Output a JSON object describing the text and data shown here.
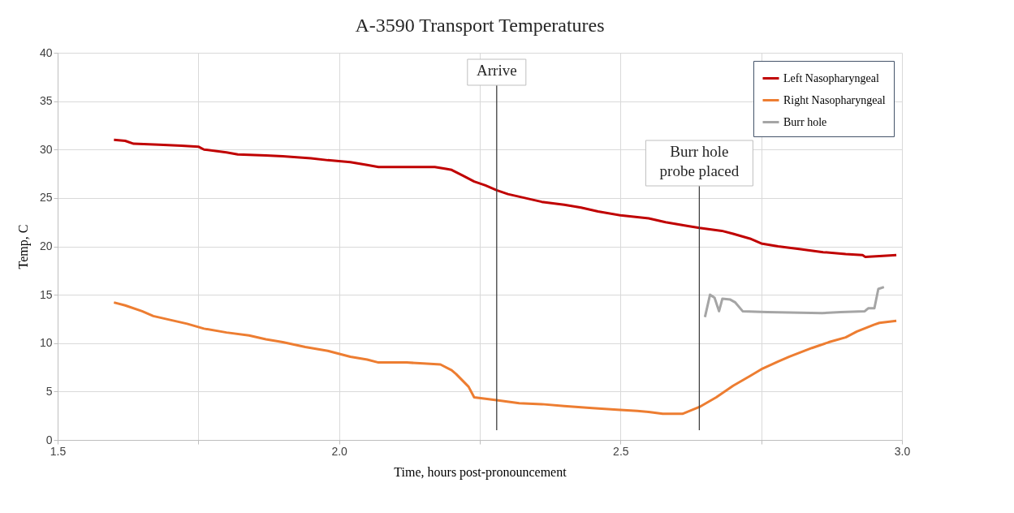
{
  "chart_data": {
    "type": "line",
    "title": "A-3590 Transport Temperatures",
    "xlabel": "Time, hours post-pronouncement",
    "ylabel": "Temp, C",
    "xlim": [
      1.5,
      3.0
    ],
    "xticks": [
      1.5,
      {
        "value": 1.75,
        "label": null
      },
      {
        "value": 2,
        "label": "2.0"
      },
      {
        "value": 2.25,
        "label": null
      },
      2.5,
      {
        "value": 2.75,
        "label": null
      },
      {
        "value": 3,
        "label": "3.0"
      }
    ],
    "ylim": [
      0,
      40
    ],
    "yticks": [
      0,
      5,
      10,
      15,
      20,
      25,
      30,
      35,
      40
    ],
    "grid": true,
    "legend": "top right",
    "line_style": "solid",
    "series": [
      {
        "name": "Left Nasopharyngeal",
        "color": "#c00000",
        "x": [
          1.6,
          1.62,
          1.635,
          1.68,
          1.72,
          1.75,
          1.76,
          1.8,
          1.82,
          1.87,
          1.9,
          1.95,
          1.98,
          2.02,
          2.05,
          2.07,
          2.12,
          2.17,
          2.19,
          2.2,
          2.22,
          2.24,
          2.26,
          2.28,
          2.3,
          2.33,
          2.36,
          2.4,
          2.43,
          2.46,
          2.5,
          2.55,
          2.58,
          2.62,
          2.64,
          2.68,
          2.7,
          2.73,
          2.75,
          2.78,
          2.82,
          2.86,
          2.9,
          2.93,
          2.935,
          2.96,
          2.99
        ],
        "values": [
          31.0,
          30.9,
          30.6,
          30.5,
          30.4,
          30.3,
          30.0,
          29.7,
          29.5,
          29.4,
          29.3,
          29.1,
          28.9,
          28.7,
          28.4,
          28.2,
          28.2,
          28.2,
          28.0,
          27.9,
          27.3,
          26.7,
          26.3,
          25.8,
          25.4,
          25.0,
          24.6,
          24.3,
          24.0,
          23.6,
          23.2,
          22.9,
          22.5,
          22.1,
          21.9,
          21.6,
          21.3,
          20.8,
          20.3,
          20.0,
          19.7,
          19.4,
          19.2,
          19.1,
          18.9,
          19.0,
          19.1
        ]
      },
      {
        "name": "Right Nasopharyngeal",
        "color": "#ed7d31",
        "x": [
          1.6,
          1.62,
          1.65,
          1.67,
          1.7,
          1.73,
          1.76,
          1.8,
          1.84,
          1.87,
          1.9,
          1.94,
          1.98,
          2.02,
          2.05,
          2.07,
          2.12,
          2.15,
          2.18,
          2.2,
          2.208,
          2.23,
          2.24,
          2.28,
          2.32,
          2.36,
          2.4,
          2.45,
          2.5,
          2.53,
          2.55,
          2.575,
          2.61,
          2.64,
          2.67,
          2.7,
          2.73,
          2.75,
          2.78,
          2.8,
          2.84,
          2.87,
          2.9,
          2.92,
          2.95,
          2.96,
          2.99
        ],
        "values": [
          14.2,
          13.9,
          13.3,
          12.8,
          12.4,
          12.0,
          11.5,
          11.1,
          10.8,
          10.4,
          10.1,
          9.6,
          9.2,
          8.6,
          8.3,
          8.0,
          8.0,
          7.9,
          7.8,
          7.2,
          6.8,
          5.5,
          4.4,
          4.1,
          3.8,
          3.7,
          3.5,
          3.3,
          3.1,
          3.0,
          2.9,
          2.7,
          2.7,
          3.4,
          4.4,
          5.6,
          6.6,
          7.3,
          8.1,
          8.6,
          9.5,
          10.1,
          10.6,
          11.2,
          11.9,
          12.1,
          12.3
        ]
      },
      {
        "name": "Burr hole",
        "color": "#a5a5a5",
        "x": [
          2.65,
          2.659,
          2.667,
          2.675,
          2.681,
          2.695,
          2.704,
          2.717,
          2.761,
          2.858,
          2.891,
          2.934,
          2.94,
          2.951,
          2.958,
          2.968
        ],
        "values": [
          12.7,
          15.0,
          14.7,
          13.3,
          14.6,
          14.5,
          14.2,
          13.3,
          13.2,
          13.1,
          13.2,
          13.3,
          13.6,
          13.6,
          15.6,
          15.8
        ]
      }
    ],
    "ref_lines": [
      {
        "axis": "x",
        "value": 2.28,
        "label": "Arrive",
        "color": "#404040"
      },
      {
        "axis": "x",
        "value": 2.64,
        "label": "Burr hole\nprobe placed",
        "color": "#404040"
      }
    ]
  }
}
